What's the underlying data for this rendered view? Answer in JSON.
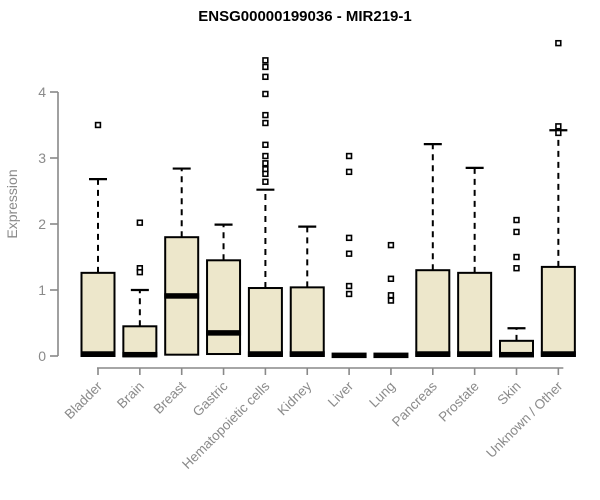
{
  "chart_data": {
    "type": "box",
    "title": "ENSG00000199036 - MIR219-1",
    "xlabel": "",
    "ylabel": "Expression",
    "ylim": [
      0,
      4.8
    ],
    "yticks": [
      0,
      1,
      2,
      3,
      4
    ],
    "grid": false,
    "legend": false,
    "categories": [
      "Bladder",
      "Brain",
      "Breast",
      "Gastric",
      "Hematopoietic cells",
      "Kidney",
      "Liver",
      "Lung",
      "Pancreas",
      "Prostate",
      "Skin",
      "Unknown / Other"
    ],
    "boxes": [
      {
        "category": "Bladder",
        "whisker_low": 0,
        "q1": 0,
        "median": 0.03,
        "q3": 1.26,
        "whisker_high": 2.68,
        "outliers": [
          3.5
        ]
      },
      {
        "category": "Brain",
        "whisker_low": 0,
        "q1": 0,
        "median": 0.02,
        "q3": 0.45,
        "whisker_high": 1.0,
        "outliers": [
          2.02,
          1.33,
          1.27
        ]
      },
      {
        "category": "Breast",
        "whisker_low": 0,
        "q1": 0.02,
        "median": 0.91,
        "q3": 1.8,
        "whisker_high": 2.84,
        "outliers": []
      },
      {
        "category": "Gastric",
        "whisker_low": 0,
        "q1": 0.03,
        "median": 0.35,
        "q3": 1.45,
        "whisker_high": 1.99,
        "outliers": []
      },
      {
        "category": "Hematopoietic cells",
        "whisker_low": 0,
        "q1": 0,
        "median": 0.03,
        "q3": 1.03,
        "whisker_high": 2.52,
        "outliers": [
          4.48,
          4.38,
          4.23,
          3.97,
          3.65,
          3.53,
          3.2,
          3.03,
          2.92,
          2.83,
          2.76,
          2.64
        ]
      },
      {
        "category": "Kidney",
        "whisker_low": 0,
        "q1": 0,
        "median": 0.03,
        "q3": 1.04,
        "whisker_high": 1.96,
        "outliers": []
      },
      {
        "category": "Liver",
        "whisker_low": 0,
        "q1": 0,
        "median": 0.01,
        "q3": 0.02,
        "whisker_high": 0.03,
        "outliers": [
          3.03,
          2.79,
          1.79,
          1.55,
          1.06,
          0.94
        ]
      },
      {
        "category": "Lung",
        "whisker_low": 0,
        "q1": 0,
        "median": 0.01,
        "q3": 0.02,
        "whisker_high": 0.03,
        "outliers": [
          1.68,
          1.17,
          0.92,
          0.84
        ]
      },
      {
        "category": "Pancreas",
        "whisker_low": 0,
        "q1": 0,
        "median": 0.03,
        "q3": 1.3,
        "whisker_high": 3.21,
        "outliers": []
      },
      {
        "category": "Prostate",
        "whisker_low": 0,
        "q1": 0,
        "median": 0.03,
        "q3": 1.26,
        "whisker_high": 2.85,
        "outliers": []
      },
      {
        "category": "Skin",
        "whisker_low": 0,
        "q1": 0,
        "median": 0.02,
        "q3": 0.23,
        "whisker_high": 0.42,
        "outliers": [
          2.06,
          1.88,
          1.5,
          1.33
        ]
      },
      {
        "category": "Unknown / Other",
        "whisker_low": 0,
        "q1": 0,
        "median": 0.03,
        "q3": 1.35,
        "whisker_high": 3.42,
        "outliers": [
          4.74,
          3.48,
          3.38
        ]
      }
    ],
    "colors": {
      "box_fill": "#EDE7CB",
      "box_border": "#000000",
      "median": "#000000",
      "axis": "#898989",
      "tick_label": "#8A8A8A",
      "title": "#000000",
      "outlier": "#000000"
    }
  }
}
